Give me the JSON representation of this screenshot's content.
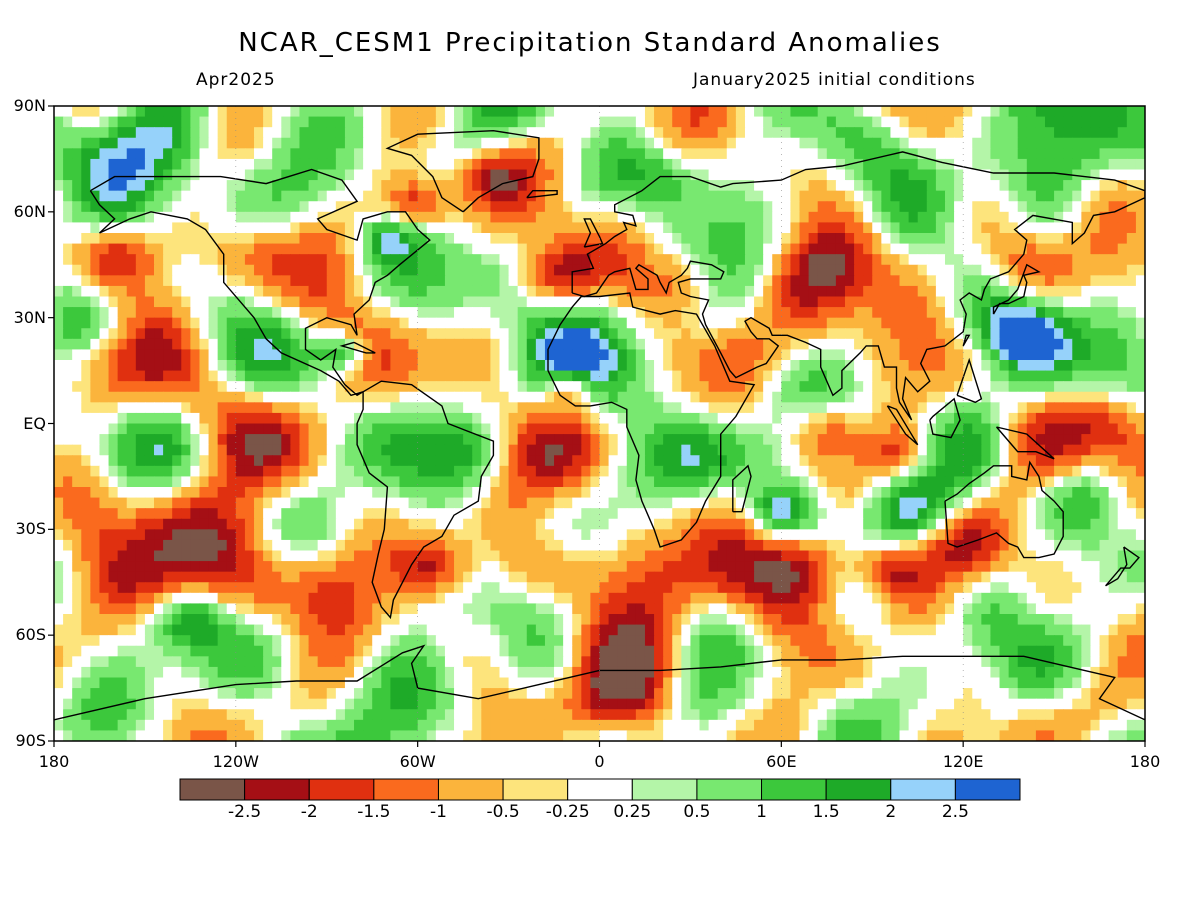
{
  "title": "NCAR_CESM1 Precipitation Standard Anomalies",
  "subtitle_left": "Apr2025",
  "subtitle_right": "January2025 initial conditions",
  "lat_labels": [
    "90N",
    "60N",
    "30N",
    "EQ",
    "30S",
    "60S",
    "90S"
  ],
  "lon_labels": [
    "180",
    "120W",
    "60W",
    "0",
    "60E",
    "120E",
    "180"
  ],
  "colorbar": {
    "colors": [
      "#7a5548",
      "#a50f15",
      "#e03010",
      "#fa6a1e",
      "#fbb43c",
      "#fde47c",
      "#ffffff",
      "#b4f5a8",
      "#78e870",
      "#3cc83c",
      "#1eaa28",
      "#96d2fa",
      "#1e64d2"
    ],
    "labels": [
      "-2.5",
      "-2",
      "-1.5",
      "-1",
      "-0.5",
      "-0.25",
      "0.25",
      "0.5",
      "1",
      "1.5",
      "2",
      "2.5"
    ]
  },
  "map": {
    "projection": "equirectangular",
    "lon_range": [
      -180,
      180
    ],
    "lat_range": [
      -90,
      90
    ],
    "coastline_color": "#000000",
    "field": "precipitation standardized anomaly"
  }
}
